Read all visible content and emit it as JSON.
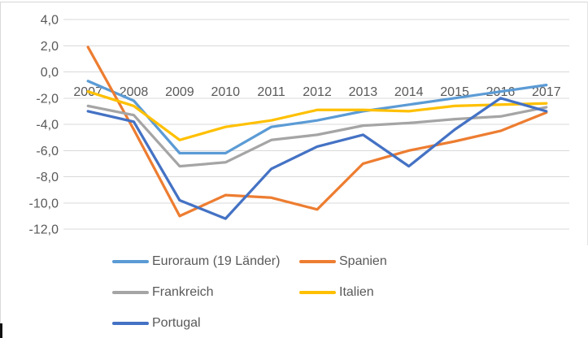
{
  "chart_data": {
    "type": "line",
    "title": "",
    "categories": [
      "2007",
      "2008",
      "2009",
      "2010",
      "2011",
      "2012",
      "2013",
      "2014",
      "2015",
      "2016",
      "2017"
    ],
    "y_ticks": [
      "4,0",
      "2,0",
      "0,0",
      "-2,0",
      "-4,0",
      "-6,0",
      "-8,0",
      "-10,0",
      "-12,0"
    ],
    "y_tick_values": [
      4,
      2,
      0,
      -2,
      -4,
      -6,
      -8,
      -10,
      -12
    ],
    "ylim": [
      -12,
      4
    ],
    "grid": true,
    "grid_color": "#d9d9d9",
    "axis_text_color": "#595959",
    "legend_position": "bottom-left",
    "series": [
      {
        "name": "Euroraum (19 Länder)",
        "color": "#5b9bd5",
        "values": [
          -0.7,
          -2.2,
          -6.2,
          -6.2,
          -4.2,
          -3.7,
          -3.0,
          -2.5,
          -2.0,
          -1.5,
          -1.0
        ]
      },
      {
        "name": "Spanien",
        "color": "#ed7d31",
        "values": [
          1.9,
          -4.4,
          -11.0,
          -9.4,
          -9.6,
          -10.5,
          -7.0,
          -6.0,
          -5.3,
          -4.5,
          -3.1
        ]
      },
      {
        "name": "Frankreich",
        "color": "#a5a5a5",
        "values": [
          -2.6,
          -3.3,
          -7.2,
          -6.9,
          -5.2,
          -4.8,
          -4.1,
          -3.9,
          -3.6,
          -3.4,
          -2.7
        ]
      },
      {
        "name": "Italien",
        "color": "#ffc000",
        "values": [
          -1.5,
          -2.6,
          -5.2,
          -4.2,
          -3.7,
          -2.9,
          -2.9,
          -3.0,
          -2.6,
          -2.5,
          -2.4
        ]
      },
      {
        "name": "Portugal",
        "color": "#4472c4",
        "values": [
          -3.0,
          -3.8,
          -9.8,
          -11.2,
          -7.4,
          -5.7,
          -4.8,
          -7.2,
          -4.4,
          -2.0,
          -3.0
        ]
      }
    ]
  }
}
